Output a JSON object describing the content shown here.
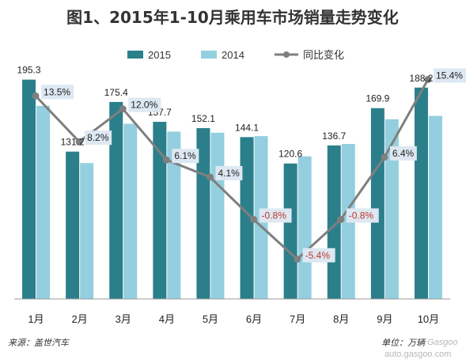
{
  "chart_data": {
    "type": "bar",
    "title": "图1、2015年1-10月乘用车市场销量走势变化",
    "categories": [
      "1月",
      "2月",
      "3月",
      "4月",
      "5月",
      "6月",
      "7月",
      "8月",
      "9月",
      "10月"
    ],
    "series": [
      {
        "name": "2015",
        "kind": "bar",
        "color": "#2b7f8b",
        "values": [
          195.3,
          131.2,
          175.4,
          157.7,
          152.1,
          144.1,
          120.6,
          136.7,
          169.9,
          188.2
        ],
        "labels": [
          "195.3",
          "131.2",
          "175.4",
          "157.7",
          "152.1",
          "144.1",
          "120.6",
          "136.7",
          "169.9",
          "188.2"
        ]
      },
      {
        "name": "2014",
        "kind": "bar",
        "color": "#93cfdf",
        "values": [
          172.0,
          121.0,
          156.0,
          149.0,
          148.0,
          145.0,
          127.0,
          138.0,
          160.0,
          163.0
        ]
      },
      {
        "name": "同比变化",
        "kind": "line",
        "color": "#7f7f7f",
        "values": [
          13.5,
          8.2,
          12.0,
          6.1,
          4.1,
          -0.8,
          -5.4,
          -0.8,
          6.4,
          15.4
        ],
        "labels": [
          "13.5%",
          "8.2%",
          "12.0%",
          "6.1%",
          "4.1%",
          "-0.8%",
          "-5.4%",
          "-0.8%",
          "6.4%",
          "15.4%"
        ]
      }
    ],
    "ylim": [
      0,
      200
    ],
    "y2lim": [
      -10,
      16
    ],
    "grid": false,
    "legend": "top-center",
    "positive_color": "#222222",
    "negative_color": "#c0392b",
    "label_box_color": "#dde8f2"
  },
  "footer": {
    "source": "来源：盖世汽车",
    "unit": "单位：万辆"
  },
  "watermark": {
    "logo": "Gasgoo",
    "url": "auto.gasgoo.com"
  }
}
